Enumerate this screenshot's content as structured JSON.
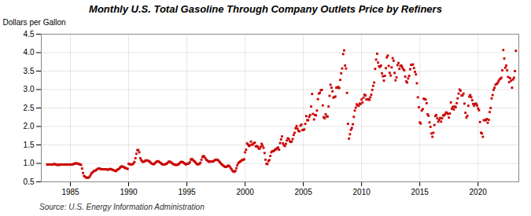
{
  "chart_data": {
    "type": "scatter",
    "title": "Monthly U.S. Total Gasoline Through Company Outlets Price by Refiners",
    "ylabel": "Dollars per Gallon",
    "source": "Source: U.S. Energy Information Administration",
    "color": "#cc0000",
    "marker": "square",
    "grid": true,
    "xlim": [
      1982.5,
      2023.5
    ],
    "xticks": [
      1985,
      1990,
      1995,
      2000,
      2005,
      2010,
      2015,
      2020
    ],
    "ylim": [
      0.5,
      4.5
    ],
    "yticks": [
      0.5,
      {
        "value": 1.0,
        "label": "1.0"
      },
      1.5,
      {
        "value": 2.0,
        "label": "2.0"
      },
      2.5,
      {
        "value": 3.0,
        "label": "3.0"
      },
      3.5,
      {
        "value": 4.0,
        "label": "4.0"
      },
      4.5
    ],
    "x": [
      1983.0,
      1983.083,
      1983.167,
      1983.25,
      1983.333,
      1983.417,
      1983.5,
      1983.583,
      1983.667,
      1983.75,
      1983.833,
      1983.917,
      1984.0,
      1984.083,
      1984.167,
      1984.25,
      1984.333,
      1984.417,
      1984.5,
      1984.583,
      1984.667,
      1984.75,
      1984.833,
      1984.917,
      1985.0,
      1985.083,
      1985.167,
      1985.25,
      1985.333,
      1985.417,
      1985.5,
      1985.583,
      1985.667,
      1985.75,
      1985.833,
      1985.917,
      1986.0,
      1986.083,
      1986.167,
      1986.25,
      1986.333,
      1986.417,
      1986.5,
      1986.583,
      1986.667,
      1986.75,
      1986.833,
      1986.917,
      1987.0,
      1987.083,
      1987.167,
      1987.25,
      1987.333,
      1987.417,
      1987.5,
      1987.583,
      1987.667,
      1987.75,
      1987.833,
      1987.917,
      1988.0,
      1988.083,
      1988.167,
      1988.25,
      1988.333,
      1988.417,
      1988.5,
      1988.583,
      1988.667,
      1988.75,
      1988.833,
      1988.917,
      1989.0,
      1989.083,
      1989.167,
      1989.25,
      1989.333,
      1989.417,
      1989.5,
      1989.583,
      1989.667,
      1989.75,
      1989.833,
      1989.917,
      1990.0,
      1990.083,
      1990.167,
      1990.25,
      1990.333,
      1990.417,
      1990.5,
      1990.583,
      1990.667,
      1990.75,
      1990.833,
      1990.917,
      1991.0,
      1991.083,
      1991.167,
      1991.25,
      1991.333,
      1991.417,
      1991.5,
      1991.583,
      1991.667,
      1991.75,
      1991.833,
      1991.917,
      1992.0,
      1992.083,
      1992.167,
      1992.25,
      1992.333,
      1992.417,
      1992.5,
      1992.583,
      1992.667,
      1992.75,
      1992.833,
      1992.917,
      1993.0,
      1993.083,
      1993.167,
      1993.25,
      1993.333,
      1993.417,
      1993.5,
      1993.583,
      1993.667,
      1993.75,
      1993.833,
      1993.917,
      1994.0,
      1994.083,
      1994.167,
      1994.25,
      1994.333,
      1994.417,
      1994.5,
      1994.583,
      1994.667,
      1994.75,
      1994.833,
      1994.917,
      1995.0,
      1995.083,
      1995.167,
      1995.25,
      1995.333,
      1995.417,
      1995.5,
      1995.583,
      1995.667,
      1995.75,
      1995.833,
      1995.917,
      1996.0,
      1996.083,
      1996.167,
      1996.25,
      1996.333,
      1996.417,
      1996.5,
      1996.583,
      1996.667,
      1996.75,
      1996.833,
      1996.917,
      1997.0,
      1997.083,
      1997.167,
      1997.25,
      1997.333,
      1997.417,
      1997.5,
      1997.583,
      1997.667,
      1997.75,
      1997.833,
      1997.917,
      1998.0,
      1998.083,
      1998.167,
      1998.25,
      1998.333,
      1998.417,
      1998.5,
      1998.583,
      1998.667,
      1998.75,
      1998.833,
      1998.917,
      1999.0,
      1999.083,
      1999.167,
      1999.25,
      1999.333,
      1999.417,
      1999.5,
      1999.583,
      1999.667,
      1999.75,
      1999.833,
      1999.917,
      2000.0,
      2000.083,
      2000.167,
      2000.25,
      2000.333,
      2000.417,
      2000.5,
      2000.583,
      2000.667,
      2000.75,
      2000.833,
      2000.917,
      2001.0,
      2001.083,
      2001.167,
      2001.25,
      2001.333,
      2001.417,
      2001.5,
      2001.583,
      2001.667,
      2001.75,
      2001.833,
      2001.917,
      2002.0,
      2002.083,
      2002.167,
      2002.25,
      2002.333,
      2002.417,
      2002.5,
      2002.583,
      2002.667,
      2002.75,
      2002.833,
      2002.917,
      2003.0,
      2003.083,
      2003.167,
      2003.25,
      2003.333,
      2003.417,
      2003.5,
      2003.583,
      2003.667,
      2003.75,
      2003.833,
      2003.917,
      2004.0,
      2004.083,
      2004.167,
      2004.25,
      2004.333,
      2004.417,
      2004.5,
      2004.583,
      2004.667,
      2004.75,
      2004.833,
      2004.917,
      2005.0,
      2005.083,
      2005.167,
      2005.25,
      2005.333,
      2005.417,
      2005.5,
      2005.583,
      2005.667,
      2005.75,
      2005.833,
      2005.917,
      2006.0,
      2006.083,
      2006.167,
      2006.25,
      2006.333,
      2006.417,
      2006.5,
      2006.583,
      2006.667,
      2006.75,
      2006.833,
      2006.917,
      2007.0,
      2007.083,
      2007.167,
      2007.25,
      2007.333,
      2007.417,
      2007.5,
      2007.583,
      2007.667,
      2007.75,
      2007.833,
      2007.917,
      2008.0,
      2008.083,
      2008.167,
      2008.25,
      2008.333,
      2008.417,
      2008.5,
      2008.583,
      2008.667,
      2008.75,
      2008.833,
      2008.917,
      2009.0,
      2009.083,
      2009.167,
      2009.25,
      2009.333,
      2009.417,
      2009.5,
      2009.583,
      2009.667,
      2009.75,
      2009.833,
      2009.917,
      2010.0,
      2010.083,
      2010.167,
      2010.25,
      2010.333,
      2010.417,
      2010.5,
      2010.583,
      2010.667,
      2010.75,
      2010.833,
      2010.917,
      2011.0,
      2011.083,
      2011.167,
      2011.25,
      2011.333,
      2011.417,
      2011.5,
      2011.583,
      2011.667,
      2011.75,
      2011.833,
      2011.917,
      2012.0,
      2012.083,
      2012.167,
      2012.25,
      2012.333,
      2012.417,
      2012.5,
      2012.583,
      2012.667,
      2012.75,
      2012.833,
      2012.917,
      2013.0,
      2013.083,
      2013.167,
      2013.25,
      2013.333,
      2013.417,
      2013.5,
      2013.583,
      2013.667,
      2013.75,
      2013.833,
      2013.917,
      2014.0,
      2014.083,
      2014.167,
      2014.25,
      2014.333,
      2014.417,
      2014.5,
      2014.583,
      2014.667,
      2014.75,
      2014.833,
      2014.917,
      2015.0,
      2015.083,
      2015.167,
      2015.25,
      2015.333,
      2015.417,
      2015.5,
      2015.583,
      2015.667,
      2015.75,
      2015.833,
      2015.917,
      2016.0,
      2016.083,
      2016.167,
      2016.25,
      2016.333,
      2016.417,
      2016.5,
      2016.583,
      2016.667,
      2016.75,
      2016.833,
      2016.917,
      2017.0,
      2017.083,
      2017.167,
      2017.25,
      2017.333,
      2017.417,
      2017.5,
      2017.583,
      2017.667,
      2017.75,
      2017.833,
      2017.917,
      2018.0,
      2018.083,
      2018.167,
      2018.25,
      2018.333,
      2018.417,
      2018.5,
      2018.583,
      2018.667,
      2018.75,
      2018.833,
      2018.917,
      2019.0,
      2019.083,
      2019.167,
      2019.25,
      2019.333,
      2019.417,
      2019.5,
      2019.583,
      2019.667,
      2019.75,
      2019.833,
      2019.917,
      2020.0,
      2020.083,
      2020.167,
      2020.25,
      2020.333,
      2020.417,
      2020.5,
      2020.583,
      2020.667,
      2020.75,
      2020.833,
      2020.917,
      2021.0,
      2021.083,
      2021.167,
      2021.25,
      2021.333,
      2021.417,
      2021.5,
      2021.583,
      2021.667,
      2021.75,
      2021.833,
      2021.917,
      2022.0,
      2022.083,
      2022.167,
      2022.25,
      2022.333,
      2022.417,
      2022.5,
      2022.583,
      2022.667,
      2022.75,
      2022.833,
      2022.917,
      2023.0,
      2023.083,
      2023.167,
      2023.25
    ],
    "values": [
      0.97,
      0.97,
      0.97,
      0.97,
      0.97,
      0.97,
      0.97,
      0.98,
      0.98,
      0.97,
      0.96,
      0.96,
      0.96,
      0.96,
      0.97,
      0.97,
      0.97,
      0.97,
      0.97,
      0.97,
      0.97,
      0.97,
      0.97,
      0.97,
      0.97,
      0.97,
      0.97,
      0.98,
      0.99,
      1.0,
      1.0,
      1.0,
      0.99,
      0.98,
      0.97,
      0.96,
      0.86,
      0.74,
      0.66,
      0.64,
      0.62,
      0.61,
      0.61,
      0.62,
      0.65,
      0.7,
      0.74,
      0.76,
      0.79,
      0.8,
      0.81,
      0.83,
      0.85,
      0.86,
      0.86,
      0.85,
      0.84,
      0.84,
      0.84,
      0.84,
      0.84,
      0.84,
      0.83,
      0.83,
      0.84,
      0.85,
      0.84,
      0.83,
      0.82,
      0.81,
      0.8,
      0.79,
      0.82,
      0.84,
      0.85,
      0.88,
      0.91,
      0.92,
      0.91,
      0.9,
      0.88,
      0.87,
      0.86,
      0.85,
      0.99,
      0.98,
      0.97,
      0.97,
      0.98,
      1.0,
      1.04,
      1.14,
      1.26,
      1.36,
      1.36,
      1.3,
      1.14,
      1.09,
      1.05,
      1.04,
      1.05,
      1.07,
      1.08,
      1.08,
      1.07,
      1.06,
      1.04,
      1.01,
      0.99,
      0.98,
      0.98,
      1.0,
      1.03,
      1.05,
      1.06,
      1.05,
      1.03,
      1.01,
      0.99,
      0.97,
      0.97,
      0.97,
      0.98,
      0.99,
      1.01,
      1.04,
      1.05,
      1.04,
      1.02,
      1.0,
      0.98,
      0.97,
      0.96,
      0.96,
      0.96,
      0.97,
      0.99,
      1.02,
      1.04,
      1.04,
      1.03,
      1.01,
      0.99,
      0.97,
      0.99,
      0.99,
      1.0,
      1.03,
      1.1,
      1.12,
      1.1,
      1.07,
      1.05,
      1.02,
      0.99,
      0.97,
      0.98,
      0.99,
      1.02,
      1.1,
      1.17,
      1.2,
      1.18,
      1.14,
      1.1,
      1.08,
      1.06,
      1.04,
      1.05,
      1.05,
      1.05,
      1.05,
      1.07,
      1.09,
      1.1,
      1.1,
      1.09,
      1.06,
      1.03,
      1.0,
      0.97,
      0.95,
      0.93,
      0.91,
      0.9,
      0.91,
      0.93,
      0.94,
      0.92,
      0.88,
      0.84,
      0.8,
      0.78,
      0.77,
      0.8,
      0.87,
      0.95,
      1.01,
      1.03,
      1.05,
      1.07,
      1.09,
      1.1,
      1.11,
      1.3,
      1.37,
      1.54,
      1.51,
      1.47,
      1.49,
      1.59,
      1.51,
      1.51,
      1.55,
      1.56,
      1.46,
      1.47,
      1.45,
      1.4,
      1.4,
      1.45,
      1.53,
      1.48,
      1.42,
      1.28,
      1.1,
      0.99,
      0.98,
      1.06,
      1.09,
      1.2,
      1.3,
      1.33,
      1.33,
      1.35,
      1.38,
      1.38,
      1.41,
      1.43,
      1.37,
      1.55,
      1.65,
      1.73,
      1.54,
      1.49,
      1.47,
      1.53,
      1.62,
      1.68,
      1.66,
      1.6,
      1.58,
      1.59,
      1.66,
      1.77,
      1.83,
      1.95,
      2.01,
      1.94,
      1.88,
      1.87,
      2.02,
      2.05,
      1.9,
      1.91,
      1.92,
      2.07,
      2.28,
      2.17,
      2.17,
      2.26,
      2.31,
      2.54,
      2.88,
      2.34,
      2.19,
      2.31,
      2.3,
      2.43,
      2.74,
      2.89,
      2.91,
      2.98,
      2.99,
      2.57,
      2.25,
      2.22,
      2.33,
      2.27,
      2.27,
      2.54,
      2.83,
      3.13,
      3.05,
      2.95,
      2.78,
      2.8,
      2.81,
      3.05,
      3.05,
      3.07,
      3.04,
      3.26,
      3.44,
      3.57,
      3.96,
      4.06,
      3.65,
      3.57,
      2.91,
      2.07,
      1.67,
      1.79,
      1.91,
      1.96,
      2.06,
      2.26,
      2.43,
      2.51,
      2.6,
      2.57,
      2.56,
      2.62,
      2.61,
      2.73,
      2.65,
      2.78,
      2.86,
      2.84,
      2.73,
      2.73,
      2.74,
      2.72,
      2.79,
      2.86,
      2.99,
      3.1,
      3.19,
      3.56,
      3.81,
      3.97,
      3.73,
      3.63,
      3.61,
      3.65,
      3.44,
      3.36,
      3.24,
      3.37,
      3.58,
      3.87,
      3.92,
      3.64,
      3.45,
      3.38,
      3.6,
      3.85,
      3.78,
      3.45,
      3.25,
      3.33,
      3.66,
      3.72,
      3.56,
      3.64,
      3.65,
      3.6,
      3.55,
      3.52,
      3.35,
      3.22,
      3.19,
      3.3,
      3.37,
      3.55,
      3.67,
      3.67,
      3.68,
      3.58,
      3.48,
      3.41,
      3.17,
      2.79,
      2.52,
      2.11,
      2.08,
      2.43,
      2.47,
      2.75,
      2.74,
      2.73,
      2.63,
      2.33,
      2.29,
      2.11,
      1.99,
      1.81,
      1.72,
      1.83,
      2.04,
      2.28,
      2.31,
      2.22,
      2.13,
      2.18,
      2.23,
      2.13,
      2.22,
      2.3,
      2.3,
      2.33,
      2.38,
      2.37,
      2.34,
      2.24,
      2.35,
      2.65,
      2.48,
      2.53,
      2.46,
      2.54,
      2.52,
      2.63,
      2.76,
      2.89,
      3.0,
      2.97,
      2.84,
      2.84,
      2.89,
      2.62,
      2.37,
      2.24,
      2.29,
      2.56,
      2.81,
      2.85,
      2.79,
      2.71,
      2.61,
      2.56,
      2.61,
      2.62,
      2.57,
      2.49,
      2.44,
      2.12,
      1.83,
      1.81,
      1.72,
      2.17,
      2.17,
      2.17,
      2.2,
      2.1,
      2.18,
      2.39,
      2.5,
      2.76,
      2.85,
      2.99,
      3.05,
      3.13,
      3.15,
      3.17,
      3.22,
      3.27,
      3.29,
      3.32,
      3.52,
      4.07,
      3.84,
      3.59,
      3.65,
      3.52,
      3.34,
      3.2,
      3.31,
      3.24,
      3.05,
      3.27,
      3.32,
      3.5,
      4.05
    ]
  }
}
